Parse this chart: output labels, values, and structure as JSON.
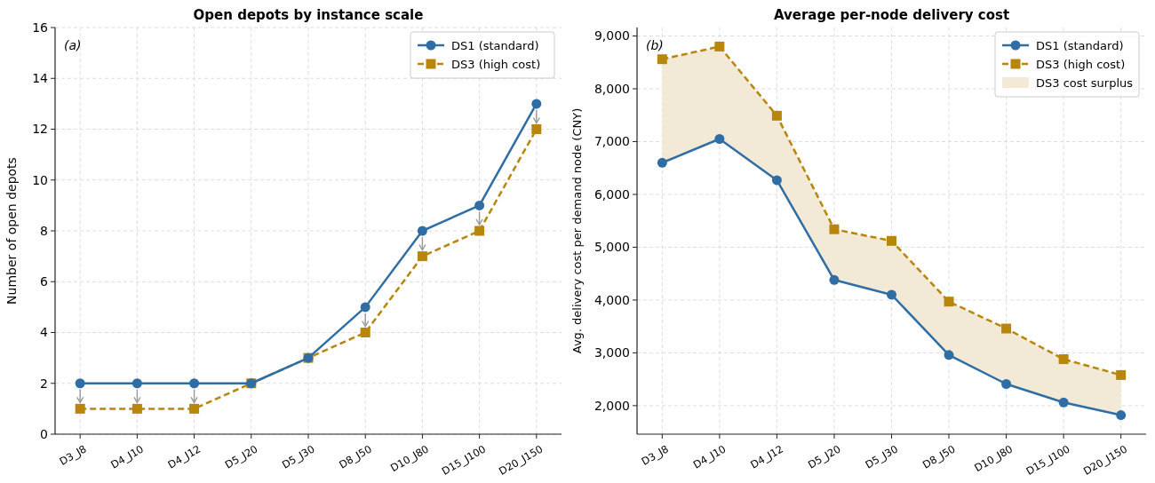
{
  "chart_data": [
    {
      "type": "line",
      "title": "Open depots by instance scale",
      "ylabel": "Number of open depots",
      "annotations": [
        "(a)"
      ],
      "categories": [
        "D3_J8",
        "D4_J10",
        "D4_J12",
        "D5_J20",
        "D5_J30",
        "D8_J50",
        "D10_J80",
        "D15_J100",
        "D20_J150"
      ],
      "series": [
        {
          "name": "DS1 (standard)",
          "color": "#2f6ea5",
          "marker": "circle",
          "line_style": "solid",
          "values": [
            2,
            2,
            2,
            2,
            3,
            5,
            8,
            9,
            13
          ]
        },
        {
          "name": "DS3 (high cost)",
          "color": "#b8860b",
          "marker": "square",
          "line_style": "dashed",
          "values": [
            1,
            1,
            1,
            2,
            3,
            4,
            7,
            8,
            12
          ]
        }
      ],
      "ylim": [
        0,
        16
      ],
      "yticks": [
        0,
        2,
        4,
        6,
        8,
        10,
        12,
        14,
        16
      ],
      "grid": true,
      "legend": "top right"
    },
    {
      "type": "line",
      "title": "Average per-node delivery cost",
      "ylabel": "Avg. delivery cost per demand node (CNY)",
      "annotations": [
        "(b)"
      ],
      "categories": [
        "D3_J8",
        "D4_J10",
        "D4_J12",
        "D5_J20",
        "D5_J30",
        "D8_J50",
        "D10_J80",
        "D15_J100",
        "D20_J150"
      ],
      "series": [
        {
          "name": "DS1 (standard)",
          "color": "#2f6ea5",
          "marker": "circle",
          "line_style": "solid",
          "values": [
            6600,
            7050,
            6270,
            4380,
            4100,
            2960,
            2410,
            2060,
            1820
          ]
        },
        {
          "name": "DS3 (high cost)",
          "color": "#b8860b",
          "marker": "square",
          "line_style": "dashed",
          "values": [
            8560,
            8800,
            7490,
            5340,
            5120,
            3970,
            3460,
            2880,
            2580
          ]
        },
        {
          "name": "DS3 cost surplus",
          "type": "area",
          "color": "#f2e9d6",
          "values": [
            null,
            null,
            null,
            null,
            null,
            null,
            null,
            null,
            null
          ],
          "lower": [
            6600,
            7050,
            6270,
            4380,
            4100,
            2960,
            2410,
            2060,
            1820
          ],
          "upper": [
            8560,
            8800,
            7490,
            5340,
            5120,
            3970,
            3460,
            2880,
            2580
          ]
        }
      ],
      "ylim": [
        1460,
        9160
      ],
      "yticks": [
        {
          "value": 2000,
          "label": "2,000"
        },
        {
          "value": 3000,
          "label": "3,000"
        },
        {
          "value": 4000,
          "label": "4,000"
        },
        {
          "value": 5000,
          "label": "5,000"
        },
        {
          "value": 6000,
          "label": "6,000"
        },
        {
          "value": 7000,
          "label": "7,000"
        },
        {
          "value": 8000,
          "label": "8,000"
        },
        {
          "value": 9000,
          "label": "9,000"
        }
      ],
      "grid": true,
      "legend": "top right"
    }
  ]
}
